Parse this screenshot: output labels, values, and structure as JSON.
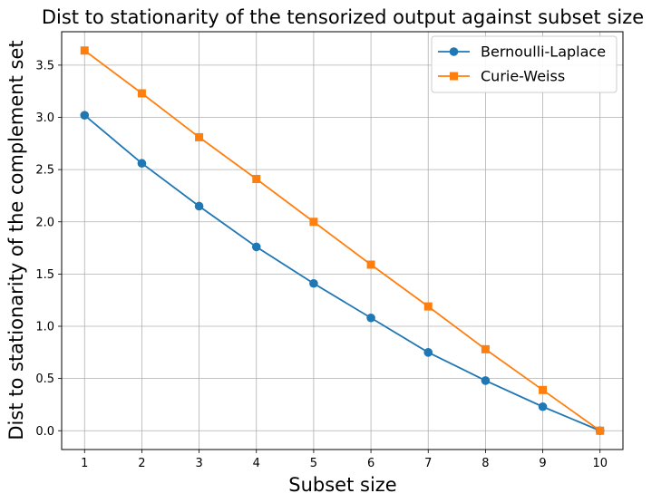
{
  "chart_data": {
    "type": "line",
    "title": "Dist to stationarity of the tensorized output against subset size",
    "xlabel": "Subset size",
    "ylabel": "Dist to stationarity of the complement set",
    "x": [
      1,
      2,
      3,
      4,
      5,
      6,
      7,
      8,
      9,
      10
    ],
    "xticks": [
      "1",
      "2",
      "3",
      "4",
      "5",
      "6",
      "7",
      "8",
      "9",
      "10"
    ],
    "yticks": [
      "0.0",
      "0.5",
      "1.0",
      "1.5",
      "2.0",
      "2.5",
      "3.0",
      "3.5"
    ],
    "xlim": [
      0.6,
      10.4
    ],
    "ylim": [
      -0.18,
      3.82
    ],
    "grid": true,
    "legend_position": "top-right",
    "series": [
      {
        "name": "Bernoulli-Laplace",
        "color": "#1f77b4",
        "marker": "circle",
        "values": [
          3.02,
          2.56,
          2.15,
          1.76,
          1.41,
          1.08,
          0.75,
          0.48,
          0.23,
          0.0
        ]
      },
      {
        "name": "Curie-Weiss",
        "color": "#ff7f0e",
        "marker": "square",
        "values": [
          3.64,
          3.23,
          2.81,
          2.41,
          2.0,
          1.59,
          1.19,
          0.78,
          0.39,
          0.0
        ]
      }
    ]
  }
}
